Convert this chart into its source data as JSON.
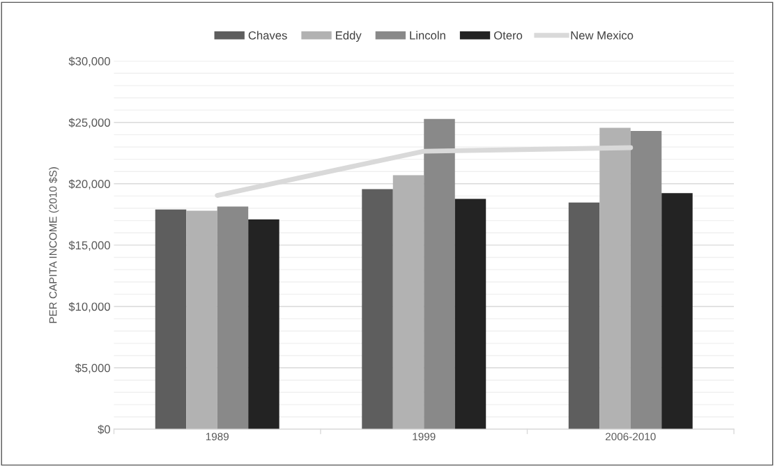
{
  "chart_data": {
    "type": "bar",
    "ylabel": "PER CAPITA INCOME (2010 $S)",
    "categories": [
      "1989",
      "1999",
      "2006-2010"
    ],
    "series": [
      {
        "name": "Chaves",
        "color": "#5e5e5e",
        "values": [
          17900,
          19560,
          18470
        ]
      },
      {
        "name": "Eddy",
        "color": "#b2b2b2",
        "values": [
          17800,
          20700,
          24560
        ]
      },
      {
        "name": "Lincoln",
        "color": "#898989",
        "values": [
          18140,
          25280,
          24300
        ]
      },
      {
        "name": "Otero",
        "color": "#232323",
        "values": [
          17090,
          18770,
          19240
        ]
      },
      {
        "name": "New Mexico",
        "type": "line",
        "color": "#d9d9d9",
        "values": [
          19050,
          22650,
          22940
        ]
      }
    ],
    "ylim": [
      0,
      30000
    ],
    "yticks": [
      {
        "value": 0,
        "label": "$0"
      },
      {
        "value": 5000,
        "label": "$5,000"
      },
      {
        "value": 10000,
        "label": "$10,000"
      },
      {
        "value": 15000,
        "label": "$15,000"
      },
      {
        "value": 20000,
        "label": "$20,000"
      },
      {
        "value": 25000,
        "label": "$25,000"
      },
      {
        "value": 30000,
        "label": "$30,000"
      }
    ],
    "grid": "y",
    "legend": "top"
  }
}
